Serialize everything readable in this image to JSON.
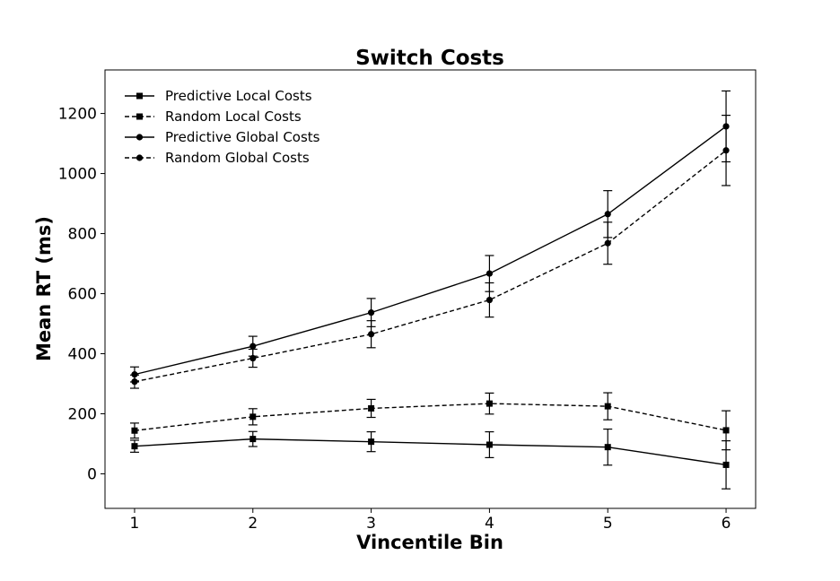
{
  "chart_data": {
    "type": "line",
    "title": "Switch Costs",
    "xlabel": "Vincentile Bin",
    "ylabel": "Mean RT (ms)",
    "x": [
      1,
      2,
      3,
      4,
      5,
      6
    ],
    "xlim": [
      0.75,
      6.25
    ],
    "ylim": [
      -115,
      1345
    ],
    "xticks": [
      1,
      2,
      3,
      4,
      5,
      6
    ],
    "yticks": [
      0,
      200,
      400,
      600,
      800,
      1000,
      1200
    ],
    "grid": false,
    "legend_position": "top-left",
    "series": [
      {
        "name": "Predictive Local Costs",
        "marker": "square",
        "line_style": "solid",
        "color": "#000000",
        "values": [
          92,
          116,
          107,
          97,
          89,
          30
        ],
        "errors": [
          20,
          25,
          33,
          43,
          60,
          80
        ]
      },
      {
        "name": "Random Local Costs",
        "marker": "square",
        "line_style": "dashed",
        "color": "#000000",
        "values": [
          144,
          190,
          218,
          234,
          225,
          145
        ],
        "errors": [
          25,
          27,
          30,
          35,
          45,
          65
        ]
      },
      {
        "name": "Predictive Global Costs",
        "marker": "circle",
        "line_style": "solid",
        "color": "#000000",
        "values": [
          331,
          425,
          537,
          667,
          865,
          1157
        ],
        "errors": [
          25,
          33,
          47,
          60,
          78,
          118
        ]
      },
      {
        "name": "Random Global Costs",
        "marker": "circle",
        "line_style": "dashed",
        "color": "#000000",
        "values": [
          307,
          385,
          465,
          579,
          768,
          1077
        ],
        "errors": [
          22,
          30,
          45,
          57,
          70,
          117
        ]
      }
    ]
  }
}
